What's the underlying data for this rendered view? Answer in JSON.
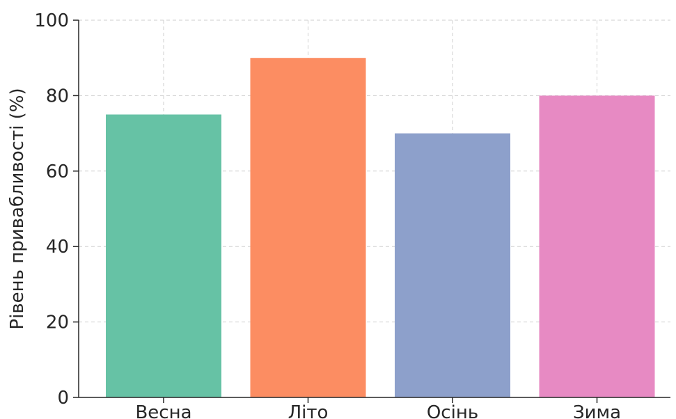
{
  "chart_data": {
    "type": "bar",
    "title": "",
    "xlabel": "",
    "ylabel": "Рівень привабливості (%)",
    "categories": [
      "Весна",
      "Літо",
      "Осінь",
      "Зима"
    ],
    "values": [
      75,
      90,
      70,
      80
    ],
    "colors": [
      "#66c2a5",
      "#fc8d62",
      "#8da0cb",
      "#e78ac3"
    ],
    "ylim": [
      0,
      100
    ],
    "yticks": [
      "0",
      "20",
      "40",
      "60",
      "80",
      "100"
    ],
    "grid": true,
    "legend": "none"
  }
}
